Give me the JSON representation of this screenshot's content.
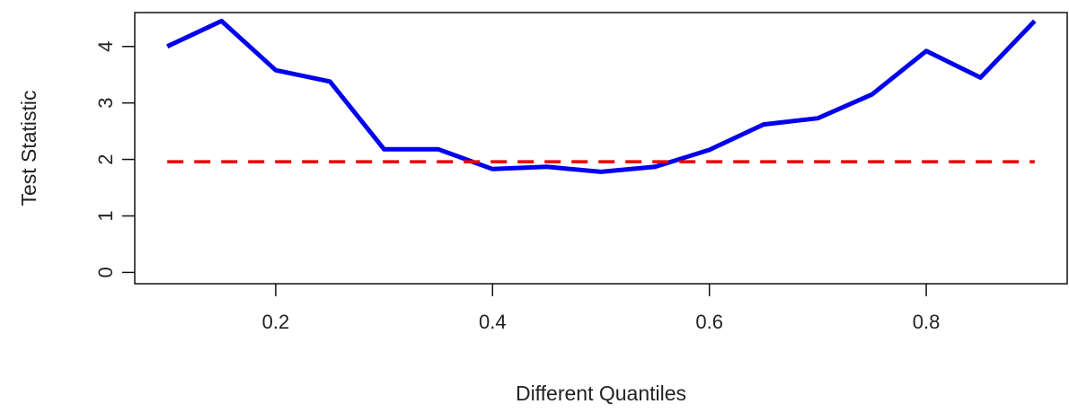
{
  "chart_data": {
    "type": "line",
    "title": "",
    "xlabel": "Different Quantiles",
    "ylabel": "Test Statistic",
    "xlim": [
      0.07,
      0.93
    ],
    "ylim": [
      -0.2,
      4.6
    ],
    "x_ticks": [
      0.2,
      0.4,
      0.6,
      0.8
    ],
    "x_tick_labels": [
      "0.2",
      "0.4",
      "0.6",
      "0.8"
    ],
    "y_ticks": [
      0,
      1,
      2,
      3,
      4
    ],
    "y_tick_labels": [
      "0",
      "1",
      "2",
      "3",
      "4"
    ],
    "grid": false,
    "legend": "none",
    "series": [
      {
        "style": "solid",
        "color": "#0000ee",
        "x": [
          0.1,
          0.15,
          0.2,
          0.25,
          0.3,
          0.35,
          0.4,
          0.45,
          0.5,
          0.55,
          0.6,
          0.65,
          0.7,
          0.75,
          0.8,
          0.85,
          0.9
        ],
        "values": [
          4.0,
          4.45,
          3.58,
          3.38,
          2.18,
          2.18,
          1.83,
          1.87,
          1.78,
          1.87,
          2.17,
          2.62,
          2.73,
          3.15,
          3.92,
          3.45,
          4.45
        ]
      },
      {
        "style": "dashed",
        "color": "#ee0000",
        "x": [
          0.1,
          0.9
        ],
        "values": [
          1.96,
          1.96
        ]
      }
    ]
  }
}
